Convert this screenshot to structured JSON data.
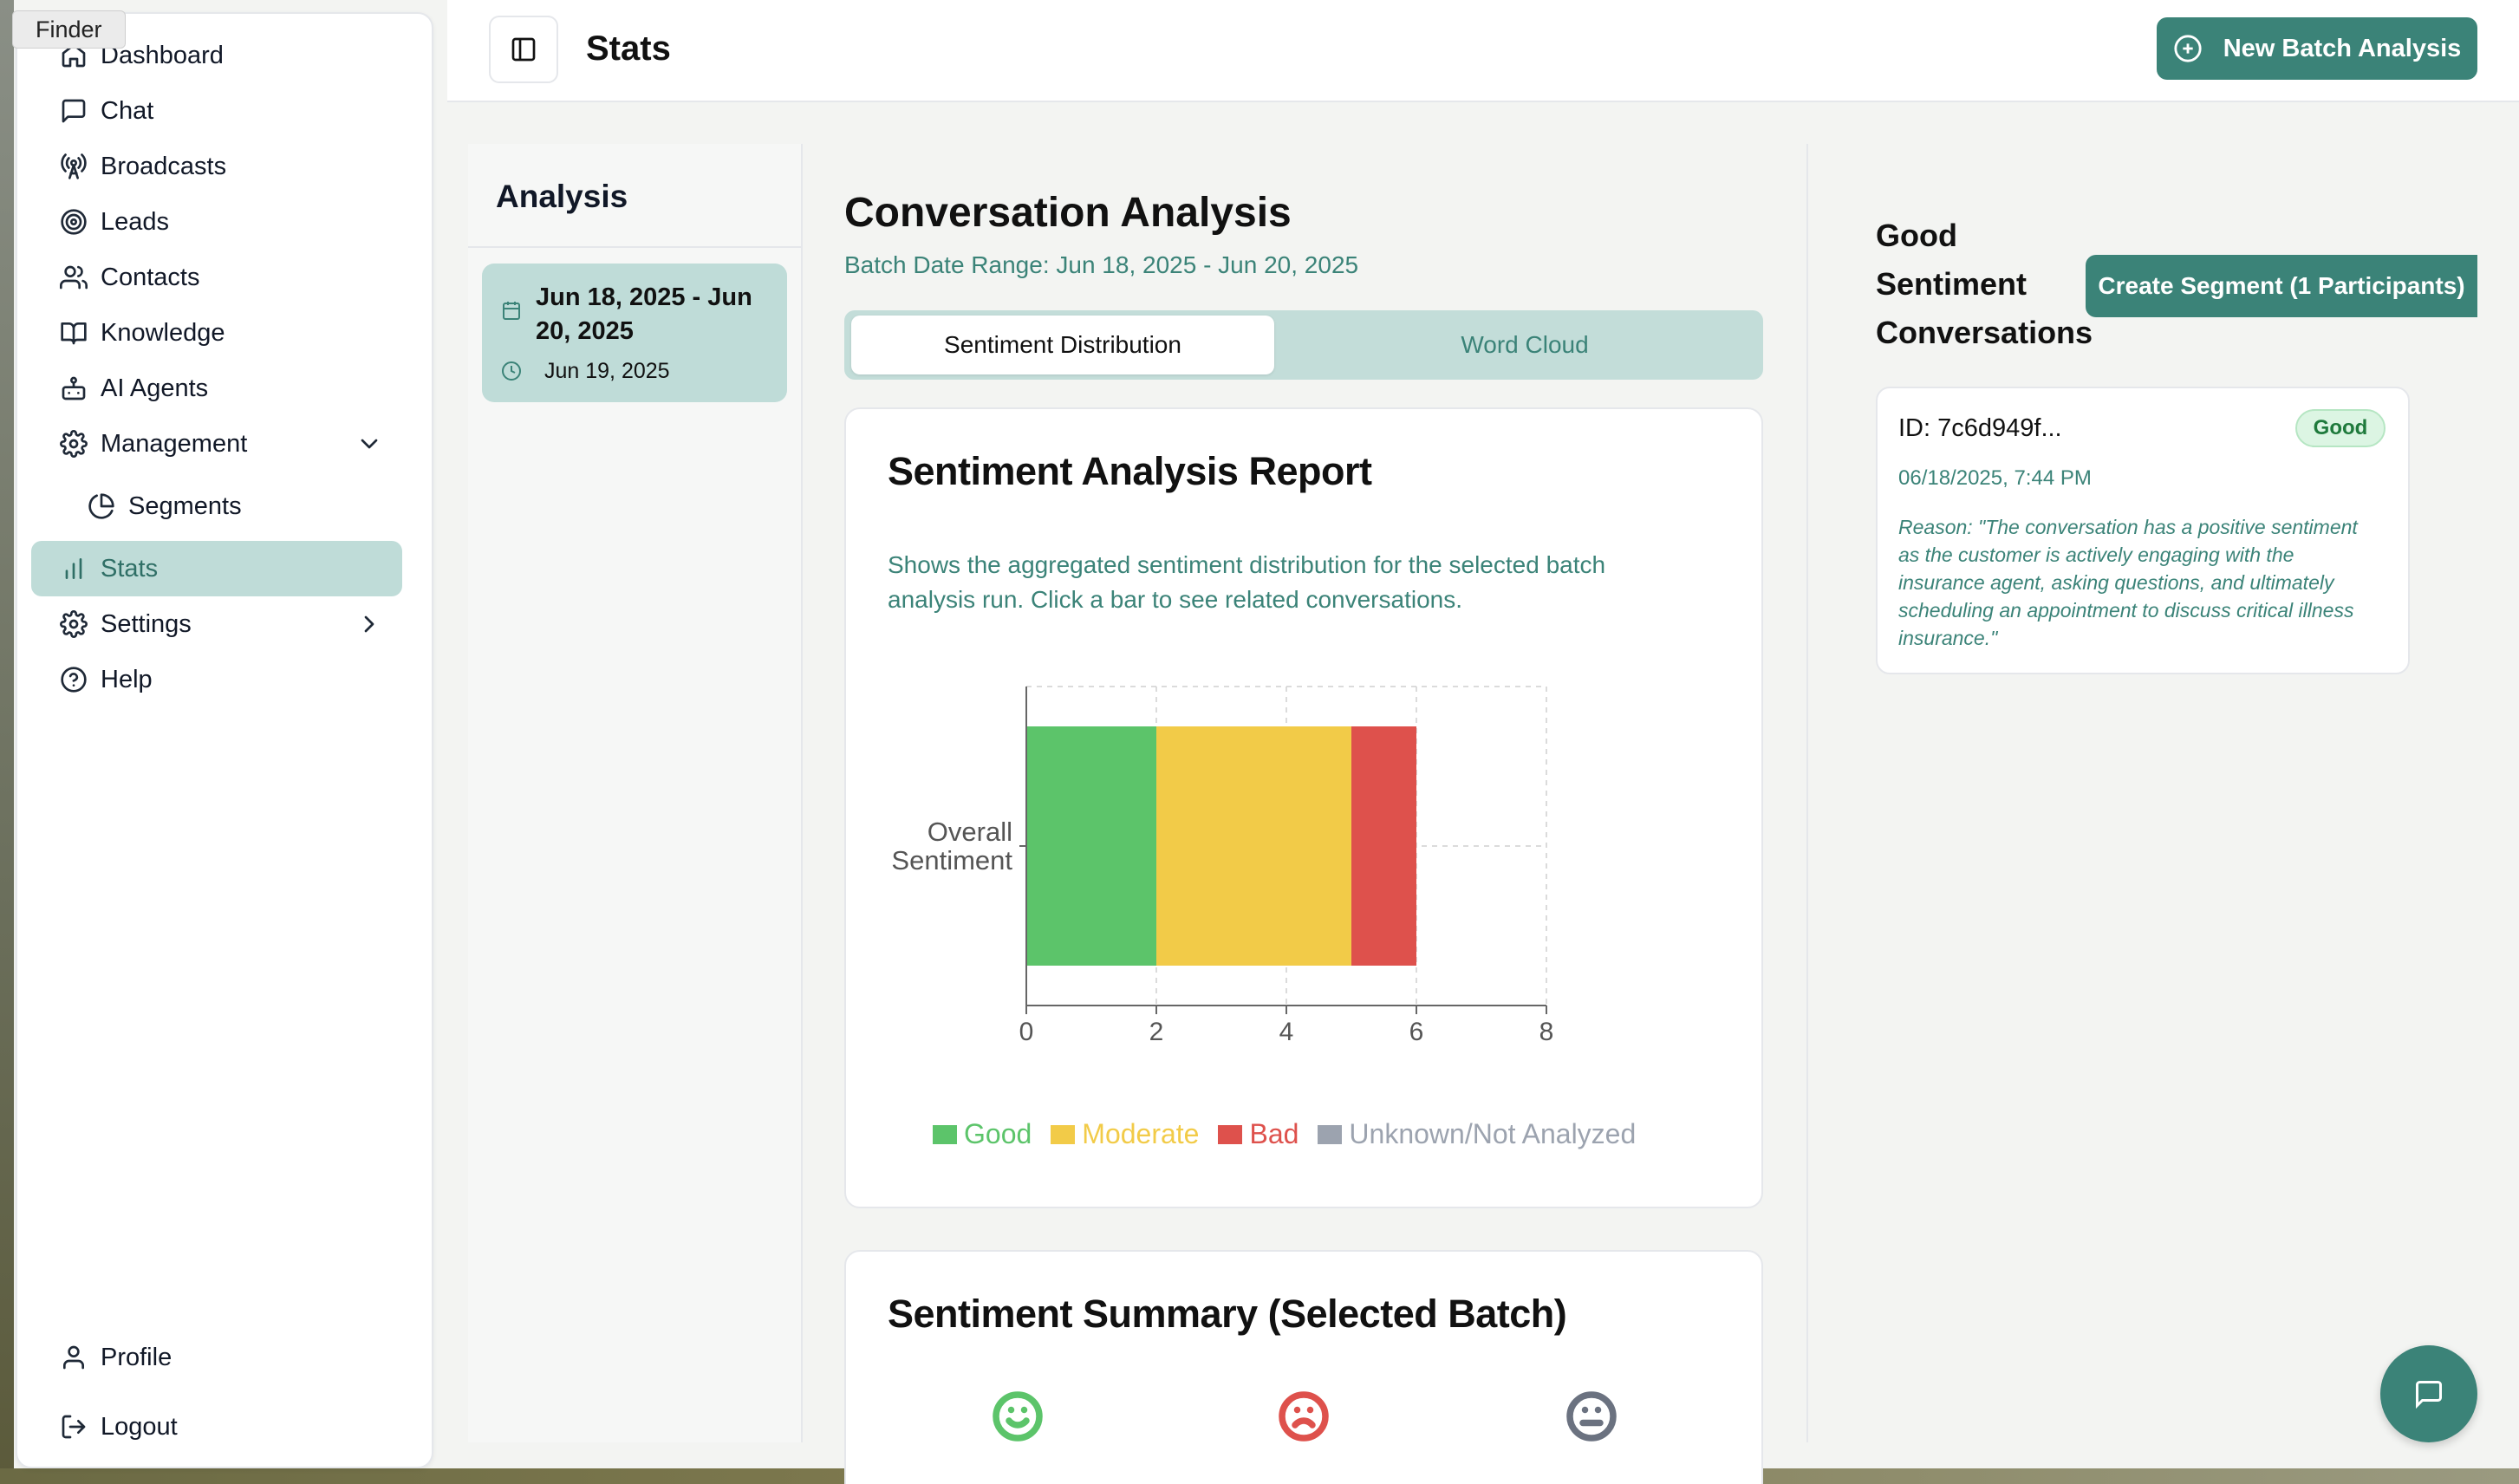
{
  "app": {
    "finder_label": "Finder",
    "page_title": "Stats",
    "new_batch_label": "New Batch Analysis"
  },
  "sidebar": {
    "items": [
      {
        "label": "Dashboard",
        "icon": "home-icon"
      },
      {
        "label": "Chat",
        "icon": "message-square-icon"
      },
      {
        "label": "Broadcasts",
        "icon": "radio-tower-icon"
      },
      {
        "label": "Leads",
        "icon": "target-icon"
      },
      {
        "label": "Contacts",
        "icon": "users-icon"
      },
      {
        "label": "Knowledge",
        "icon": "book-open-icon"
      },
      {
        "label": "AI Agents",
        "icon": "bot-icon"
      },
      {
        "label": "Management",
        "icon": "gear-icon",
        "expanded": true
      },
      {
        "label": "Segments",
        "icon": "pie-chart-icon"
      },
      {
        "label": "Stats",
        "icon": "bar-chart-icon",
        "active": true
      },
      {
        "label": "Settings",
        "icon": "gear-icon"
      },
      {
        "label": "Help",
        "icon": "help-circle-icon"
      }
    ],
    "profile_label": "Profile",
    "logout_label": "Logout"
  },
  "analysis": {
    "title": "Analysis",
    "batch": {
      "range": "Jun 18, 2025 - Jun 20, 2025",
      "date": "Jun 19, 2025"
    }
  },
  "main": {
    "title": "Conversation Analysis",
    "range_line": "Batch Date Range: Jun 18, 2025 - Jun 20, 2025",
    "tabs": [
      {
        "label": "Sentiment Distribution",
        "active": true
      },
      {
        "label": "Word Cloud",
        "active": false
      }
    ],
    "report_title": "Sentiment Analysis Report",
    "report_desc": "Shows the aggregated sentiment distribution for the selected batch analysis run. Click a bar to see related conversations.",
    "summary_title": "Sentiment Summary (Selected Batch)"
  },
  "colors": {
    "accent": "#3b8378",
    "accent_light": "#bfdcd8",
    "good": "#5cc46a",
    "moderate": "#f2cb48",
    "bad": "#de514c",
    "unknown": "#9ca3af"
  },
  "chart_data": {
    "type": "bar",
    "orientation": "horizontal",
    "stacked": true,
    "categories": [
      "Overall Sentiment"
    ],
    "series": [
      {
        "name": "Good",
        "values": [
          2
        ]
      },
      {
        "name": "Moderate",
        "values": [
          3
        ]
      },
      {
        "name": "Bad",
        "values": [
          1
        ]
      },
      {
        "name": "Unknown/Not Analyzed",
        "values": [
          0
        ]
      }
    ],
    "xlim": [
      0,
      8
    ],
    "xticks": [
      0,
      2,
      4,
      6,
      8
    ],
    "grid": true,
    "legend": "bottom"
  },
  "right": {
    "title": "Good Sentiment Conversations",
    "segment_button": "Create Segment (1 Participants)",
    "conversation": {
      "id": "ID: 7c6d949f...",
      "badge": "Good",
      "time": "06/18/2025, 7:44 PM",
      "reason": "Reason: \"The conversation has a positive sentiment as the customer is actively engaging with the insurance agent, asking questions, and ultimately scheduling an appointment to discuss critical illness insurance.\""
    }
  }
}
